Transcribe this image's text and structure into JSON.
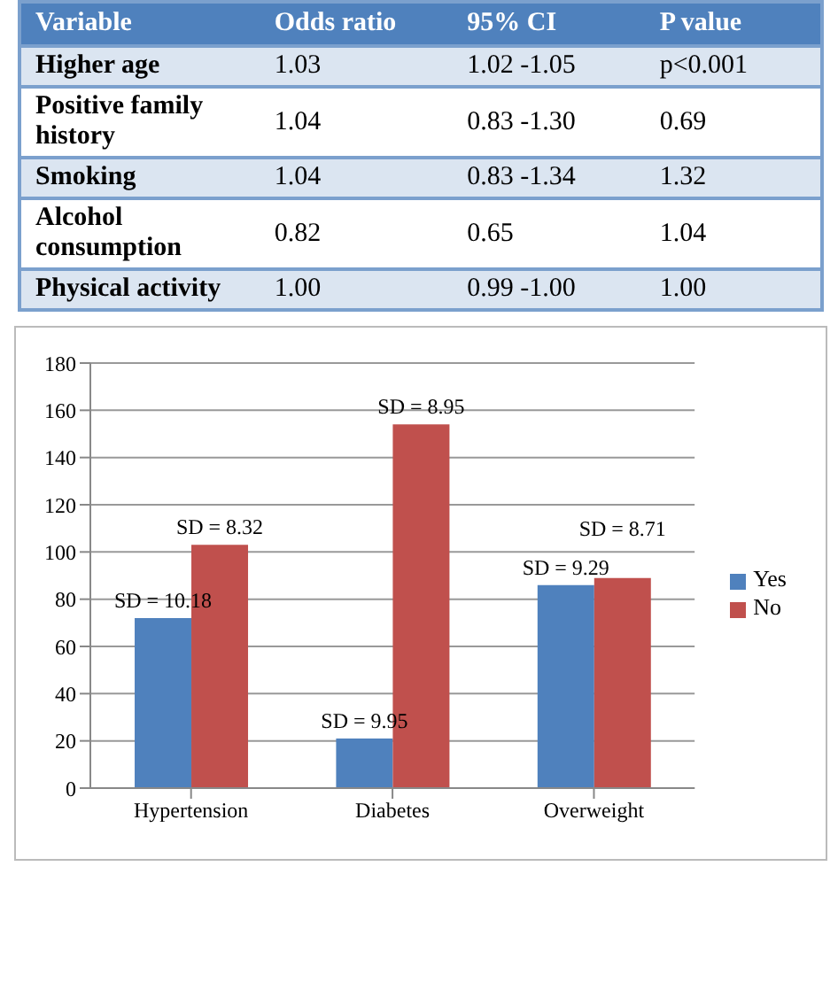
{
  "chart_data": [
    {
      "type": "other",
      "categories": [
        "Variable",
        "Odds ratio",
        "95% CI",
        "P value"
      ],
      "annotations": [
        "Higher age",
        "1.03",
        "1.02 -1.05",
        "p<0.001",
        "Positive family history",
        "1.04",
        "0.83 -1.30",
        "0.69",
        "Smoking",
        "1.04",
        "0.83 -1.34",
        "1.32",
        "Alcohol consumption",
        "0.82",
        "0.65",
        "1.04",
        "Physical activity",
        "1.00",
        "0.99 -1.00",
        "1.00"
      ]
    },
    {
      "type": "bar",
      "categories": [
        "Hypertension",
        "Diabetes",
        "Overweight"
      ],
      "series": [
        {
          "name": "Yes",
          "color": "#4f81bd",
          "values": [
            72,
            21,
            86
          ]
        },
        {
          "name": "No",
          "color": "#c0504d",
          "values": [
            103,
            154,
            89
          ]
        }
      ],
      "annotations": [
        {
          "text": "SD = 10.18",
          "x": "Hypertension",
          "y": 72
        },
        {
          "text": "SD = 8.32",
          "x": "Hypertension",
          "y": 103
        },
        {
          "text": "SD = 8.95",
          "x": "Diabetes",
          "y": 154
        },
        {
          "text": "SD = 9.95",
          "x": "Diabetes",
          "y": 21
        },
        {
          "text": "SD = 9.29",
          "x": "Overweight",
          "y": 86
        },
        {
          "text": "SD = 8.71",
          "x": "Overweight",
          "y": 89
        }
      ],
      "ylim": [
        0,
        180
      ],
      "yticks": [
        0,
        20,
        40,
        60,
        80,
        100,
        120,
        140,
        160,
        180
      ],
      "grid": "y",
      "legend": "right"
    }
  ]
}
